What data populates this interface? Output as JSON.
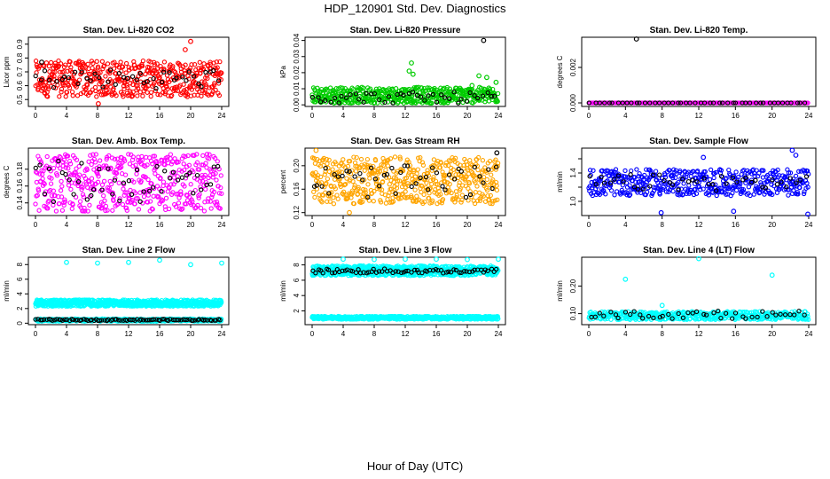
{
  "title": "HDP_120901  Std. Dev. Diagnostics",
  "x_axis_label": "Hour of Day (UTC)",
  "chart_data": [
    {
      "type": "scatter",
      "title": "Stan. Dev. Li-820 CO2",
      "ylabel": "Licor ppm",
      "xlim": [
        0,
        24
      ],
      "x_ticks": [
        0,
        4,
        8,
        12,
        16,
        20,
        24
      ],
      "ylim": [
        0.45,
        0.95
      ],
      "y_ticks": [
        0.5,
        0.6,
        0.7,
        0.8,
        0.9
      ],
      "color": "#ff0000",
      "series": [
        {
          "color": "#ff0000",
          "band": [
            0.52,
            0.78
          ],
          "count": 480
        },
        {
          "color": "#000000",
          "band": [
            0.58,
            0.72
          ],
          "count": 45
        }
      ],
      "outliers": [
        {
          "x": 20.0,
          "y": 0.92,
          "color": "#ff0000"
        },
        {
          "x": 19.3,
          "y": 0.86,
          "color": "#ff0000"
        },
        {
          "x": 8.1,
          "y": 0.47,
          "color": "#ff0000"
        },
        {
          "x": 0.8,
          "y": 0.77,
          "color": "#000000"
        }
      ]
    },
    {
      "type": "scatter",
      "title": "Stan. Dev. Li-820 Pressure",
      "ylabel": "kPa",
      "xlim": [
        0,
        24
      ],
      "x_ticks": [
        0,
        4,
        8,
        12,
        16,
        20,
        24
      ],
      "ylim": [
        -0.001,
        0.042
      ],
      "y_ticks": [
        0.0,
        0.01,
        0.02,
        0.03,
        0.04
      ],
      "y_tick_labels": [
        "0.00",
        "0.01",
        "0.02",
        "0.03",
        "0.04"
      ],
      "color": "#00cc00",
      "series": [
        {
          "color": "#00cc00",
          "band": [
            0.001,
            0.011
          ],
          "count": 480
        },
        {
          "color": "#000000",
          "band": [
            0.001,
            0.008
          ],
          "count": 45
        }
      ],
      "outliers": [
        {
          "x": 22.1,
          "y": 0.04,
          "color": "#000000"
        },
        {
          "x": 12.8,
          "y": 0.026,
          "color": "#00cc00"
        },
        {
          "x": 12.5,
          "y": 0.021,
          "color": "#00cc00"
        },
        {
          "x": 13.0,
          "y": 0.019,
          "color": "#00cc00"
        },
        {
          "x": 21.5,
          "y": 0.018,
          "color": "#00cc00"
        },
        {
          "x": 22.5,
          "y": 0.017,
          "color": "#00cc00"
        },
        {
          "x": 20.6,
          "y": 0.012,
          "color": "#00cc00"
        },
        {
          "x": 23.7,
          "y": 0.014,
          "color": "#00cc00"
        }
      ]
    },
    {
      "type": "scatter",
      "title": "Stan. Dev. Li-820 Temp.",
      "ylabel": "degrees C",
      "xlim": [
        0,
        24
      ],
      "x_ticks": [
        0,
        4,
        8,
        12,
        16,
        20,
        24
      ],
      "ylim": [
        -0.0002,
        0.0037
      ],
      "y_ticks": [
        0.0,
        0.002
      ],
      "y_tick_labels": [
        "0.000",
        "0.002"
      ],
      "color": "#ff00ff",
      "series": [
        {
          "color": "#ff00ff",
          "band": [
            0.0,
            0.0
          ],
          "count": 200
        },
        {
          "color": "#000000",
          "band": [
            0.0,
            0.0
          ],
          "count": 48
        }
      ],
      "outliers": [
        {
          "x": 5.2,
          "y": 0.0036,
          "color": "#000000"
        }
      ]
    },
    {
      "type": "scatter",
      "title": "Stan. Dev. Amb. Box Temp.",
      "ylabel": "degrees C",
      "xlim": [
        0,
        24
      ],
      "x_ticks": [
        0,
        4,
        8,
        12,
        16,
        20,
        24
      ],
      "ylim": [
        0.125,
        0.205
      ],
      "y_ticks": [
        0.14,
        0.16,
        0.18
      ],
      "color": "#ff00ff",
      "series": [
        {
          "color": "#ff00ff",
          "band": [
            0.13,
            0.198
          ],
          "count": 480
        },
        {
          "color": "#000000",
          "band": [
            0.14,
            0.19
          ],
          "count": 45
        }
      ],
      "outliers": []
    },
    {
      "type": "scatter",
      "title": "Stan. Dev. Gas Stream RH",
      "ylabel": "percent",
      "xlim": [
        0,
        24
      ],
      "x_ticks": [
        0,
        4,
        8,
        12,
        16,
        20,
        24
      ],
      "ylim": [
        0.115,
        0.23
      ],
      "y_ticks": [
        0.12,
        0.16,
        0.2
      ],
      "y_tick_labels": [
        "0.12",
        "0.16",
        "0.20"
      ],
      "color": "#ffa500",
      "series": [
        {
          "color": "#ffa500",
          "band": [
            0.135,
            0.215
          ],
          "count": 520
        },
        {
          "color": "#000000",
          "band": [
            0.145,
            0.2
          ],
          "count": 45
        }
      ],
      "outliers": [
        {
          "x": 4.8,
          "y": 0.12,
          "color": "#ffa500"
        },
        {
          "x": 0.5,
          "y": 0.226,
          "color": "#ffa500"
        },
        {
          "x": 23.8,
          "y": 0.222,
          "color": "#000000"
        }
      ]
    },
    {
      "type": "scatter",
      "title": "Stan. Dev. Sample Flow",
      "ylabel": "ml/min",
      "xlim": [
        0,
        24
      ],
      "x_ticks": [
        0,
        4,
        8,
        12,
        16,
        20,
        24
      ],
      "ylim": [
        0.8,
        1.75
      ],
      "y_ticks": [
        1.0,
        1.2,
        1.4,
        1.6
      ],
      "y_tick_labels": [
        "1.0",
        "",
        "1.4",
        ""
      ],
      "color": "#0000ff",
      "series": [
        {
          "color": "#0000ff",
          "band": [
            1.08,
            1.45
          ],
          "count": 480
        },
        {
          "color": "#000000",
          "band": [
            1.15,
            1.38
          ],
          "count": 45
        }
      ],
      "outliers": [
        {
          "x": 23.9,
          "y": 0.82,
          "color": "#0000ff"
        },
        {
          "x": 7.9,
          "y": 0.84,
          "color": "#0000ff"
        },
        {
          "x": 15.8,
          "y": 0.86,
          "color": "#0000ff"
        },
        {
          "x": 22.2,
          "y": 1.72,
          "color": "#0000ff"
        },
        {
          "x": 12.5,
          "y": 1.62,
          "color": "#0000ff"
        },
        {
          "x": 22.6,
          "y": 1.65,
          "color": "#0000ff"
        }
      ]
    },
    {
      "type": "scatter",
      "title": "Stan. Dev. Line 2 Flow",
      "ylabel": "ml/min",
      "xlim": [
        0,
        24
      ],
      "x_ticks": [
        0,
        4,
        8,
        12,
        16,
        20,
        24
      ],
      "ylim": [
        -0.2,
        9.0
      ],
      "y_ticks": [
        0,
        2,
        4,
        6,
        8
      ],
      "color": "#00ffff",
      "series": [
        {
          "color": "#00ffff",
          "band": [
            2.3,
            3.2
          ],
          "count": 700
        },
        {
          "color": "#00ffff",
          "band": [
            0.25,
            0.6
          ],
          "count": 500
        },
        {
          "color": "#000000",
          "band": [
            0.35,
            0.55
          ],
          "count": 90
        }
      ],
      "outliers": [
        {
          "x": 4.0,
          "y": 8.3,
          "color": "#00ffff"
        },
        {
          "x": 8.0,
          "y": 8.2,
          "color": "#00ffff"
        },
        {
          "x": 12.0,
          "y": 8.3,
          "color": "#00ffff"
        },
        {
          "x": 16.0,
          "y": 8.6,
          "color": "#00ffff"
        },
        {
          "x": 20.0,
          "y": 8.0,
          "color": "#00ffff"
        },
        {
          "x": 24.0,
          "y": 8.2,
          "color": "#00ffff"
        }
      ]
    },
    {
      "type": "scatter",
      "title": "Stan. Dev. Line 3 Flow",
      "ylabel": "ml/min",
      "xlim": [
        0,
        24
      ],
      "x_ticks": [
        0,
        4,
        8,
        12,
        16,
        20,
        24
      ],
      "ylim": [
        0.2,
        9.0
      ],
      "y_ticks": [
        2,
        4,
        6,
        8
      ],
      "color": "#00ffff",
      "series": [
        {
          "color": "#00ffff",
          "band": [
            6.6,
            7.9
          ],
          "count": 700
        },
        {
          "color": "#00ffff",
          "band": [
            0.9,
            1.3
          ],
          "count": 600
        },
        {
          "color": "#000000",
          "band": [
            6.9,
            7.5
          ],
          "count": 70
        }
      ],
      "outliers": [
        {
          "x": 4.0,
          "y": 8.75,
          "color": "#00ffff"
        },
        {
          "x": 8.0,
          "y": 8.7,
          "color": "#00ffff"
        },
        {
          "x": 12.0,
          "y": 8.75,
          "color": "#00ffff"
        },
        {
          "x": 16.0,
          "y": 8.75,
          "color": "#00ffff"
        },
        {
          "x": 20.0,
          "y": 8.7,
          "color": "#00ffff"
        },
        {
          "x": 24.0,
          "y": 8.75,
          "color": "#00ffff"
        }
      ]
    },
    {
      "type": "scatter",
      "title": "Stan. Dev. Line 4 (LT) Flow",
      "ylabel": "ml/min",
      "xlim": [
        0,
        24
      ],
      "x_ticks": [
        0,
        4,
        8,
        12,
        16,
        20,
        24
      ],
      "ylim": [
        0.06,
        0.305
      ],
      "y_ticks": [
        0.1,
        0.2
      ],
      "y_tick_labels": [
        "0.10",
        "0.20"
      ],
      "color": "#00ffff",
      "series": [
        {
          "color": "#00ffff",
          "band": [
            0.078,
            0.108
          ],
          "count": 480
        },
        {
          "color": "#000000",
          "band": [
            0.082,
            0.11
          ],
          "count": 45
        }
      ],
      "outliers": [
        {
          "x": 12.0,
          "y": 0.3,
          "color": "#00ffff"
        },
        {
          "x": 20.0,
          "y": 0.24,
          "color": "#00ffff"
        },
        {
          "x": 4.0,
          "y": 0.225,
          "color": "#00ffff"
        },
        {
          "x": 8.0,
          "y": 0.13,
          "color": "#00ffff"
        }
      ]
    }
  ]
}
